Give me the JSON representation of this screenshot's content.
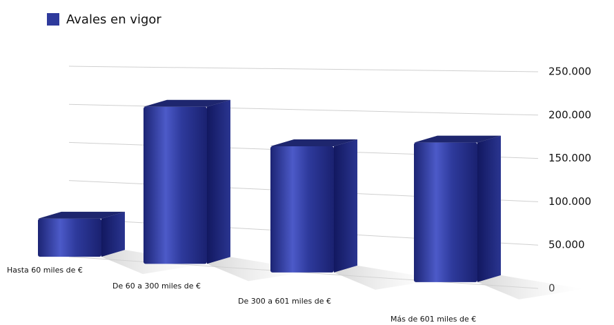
{
  "chart_data": {
    "type": "bar",
    "categories": [
      "Hasta 60 miles de €",
      "De 60 a 300 miles de €",
      "De 300 a 601 miles de €",
      "Más de 601 miles de €"
    ],
    "series": [
      {
        "name": "Avales en vigor",
        "color": "#2e3a9c",
        "values": [
          50000,
          200000,
          155000,
          165000
        ]
      }
    ],
    "ylim": [
      0,
      250000
    ],
    "yticks": [
      0,
      {
        "value": 50000,
        "label": "50.000"
      },
      {
        "value": 100000,
        "label": "100.000"
      },
      {
        "value": 150000,
        "label": "150.000"
      },
      {
        "value": 200000,
        "label": "200.000"
      },
      {
        "value": 250000,
        "label": "250.000"
      }
    ],
    "grid": true,
    "legend": "top-left"
  }
}
